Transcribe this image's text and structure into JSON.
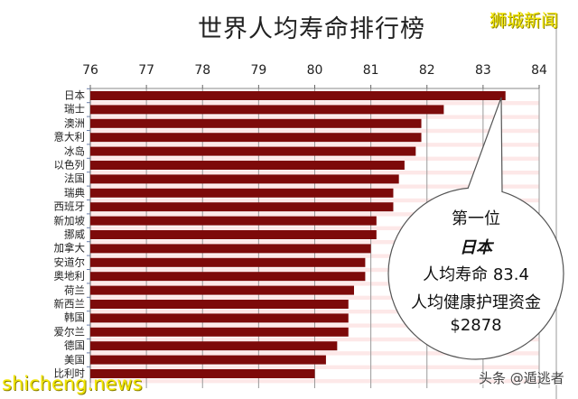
{
  "chart_data": {
    "type": "bar",
    "orientation": "horizontal",
    "title": "世界人均寿命排行榜",
    "xlabel": "",
    "ylabel": "",
    "xlim": [
      76,
      84
    ],
    "xticks": [
      76,
      77,
      78,
      79,
      80,
      81,
      82,
      83,
      84
    ],
    "axis_position": "top",
    "grid": true,
    "bar_color": "#7d0a0a",
    "categories": [
      "日本",
      "瑞士",
      "澳洲",
      "意大利",
      "冰岛",
      "以色列",
      "法国",
      "瑞典",
      "西班牙",
      "新加坡",
      "挪威",
      "加拿大",
      "安道尔",
      "奥地利",
      "荷兰",
      "新西兰",
      "韩国",
      "爱尔兰",
      "德国",
      "美国",
      "比利时"
    ],
    "values": [
      83.4,
      82.3,
      81.9,
      81.9,
      81.8,
      81.6,
      81.5,
      81.4,
      81.4,
      81.1,
      81.1,
      81.0,
      80.9,
      80.9,
      80.7,
      80.6,
      80.6,
      80.6,
      80.4,
      80.2,
      80.0
    ],
    "annotation": {
      "rank": "第一位",
      "country": "日本",
      "life_expectancy_label": "人均寿命 83.4",
      "healthcare_label": "人均健康护理资金",
      "healthcare_value": "$2878"
    }
  },
  "watermarks": {
    "top_right": "狮城新闻",
    "bottom_left": "shicheng.news",
    "bottom_right": "头条 @遁逃者"
  }
}
